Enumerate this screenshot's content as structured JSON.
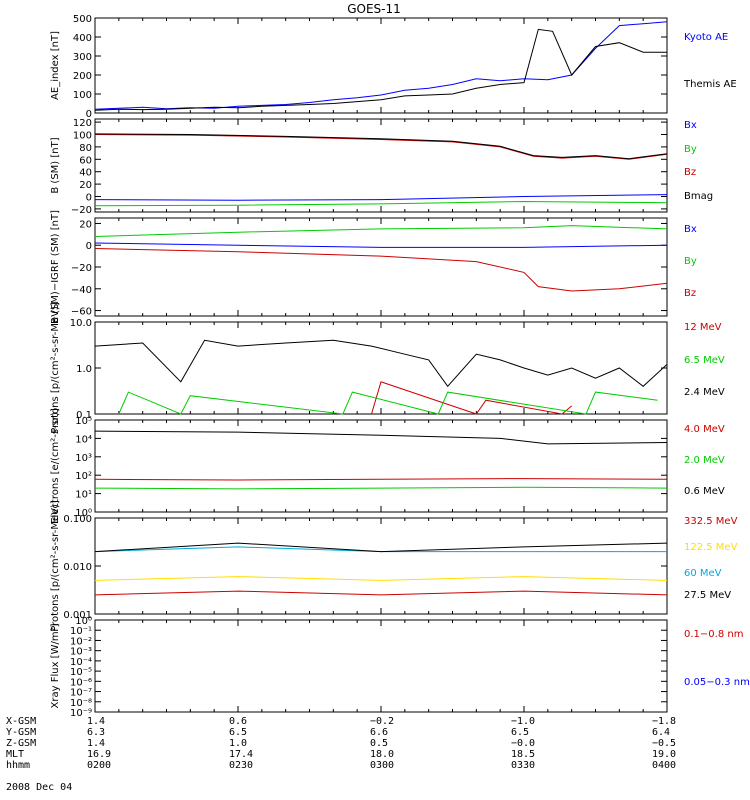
{
  "title": "GOES-11",
  "chart_data": [
    {
      "type": "line",
      "ylabel": "AE_index [nT]",
      "ylim": [
        0,
        500
      ],
      "yticks": [
        "500",
        "400",
        "300",
        "200",
        "100",
        "0"
      ],
      "ytick_values": [
        500,
        400,
        300,
        200,
        100,
        0
      ],
      "series": [
        {
          "name": "Kyoto AE",
          "color": "#0000ff",
          "x": [
            0,
            5,
            10,
            15,
            20,
            25,
            30,
            35,
            40,
            45,
            50,
            55,
            60,
            65,
            70,
            75,
            80,
            85,
            90,
            95,
            100,
            105,
            110,
            115,
            120
          ],
          "y": [
            20,
            25,
            30,
            22,
            28,
            25,
            35,
            40,
            45,
            55,
            70,
            80,
            95,
            120,
            130,
            150,
            180,
            170,
            180,
            175,
            200,
            340,
            460,
            470,
            480
          ]
        },
        {
          "name": "Themis AE",
          "color": "#000000",
          "x": [
            0,
            5,
            10,
            15,
            20,
            25,
            30,
            35,
            40,
            45,
            50,
            55,
            60,
            65,
            70,
            75,
            80,
            85,
            90,
            93,
            96,
            100,
            105,
            110,
            115,
            120
          ],
          "y": [
            15,
            20,
            18,
            20,
            25,
            30,
            28,
            35,
            40,
            45,
            50,
            60,
            70,
            90,
            95,
            100,
            130,
            150,
            160,
            440,
            430,
            200,
            350,
            370,
            320,
            320
          ]
        }
      ]
    },
    {
      "type": "line",
      "ylabel": "B (SM) [nT]",
      "ylim": [
        -25,
        125
      ],
      "yticks": [
        "120",
        "100",
        "80",
        "60",
        "40",
        "20",
        "0",
        "−20"
      ],
      "ytick_values": [
        120,
        100,
        80,
        60,
        40,
        20,
        0,
        -20
      ],
      "series": [
        {
          "name": "Bx",
          "color": "#0000ff",
          "x": [
            0,
            30,
            60,
            90,
            120
          ],
          "y": [
            -5,
            -6,
            -5,
            0,
            3
          ]
        },
        {
          "name": "By",
          "color": "#00cc00",
          "x": [
            0,
            30,
            60,
            90,
            120
          ],
          "y": [
            -15,
            -14,
            -12,
            -8,
            -10
          ]
        },
        {
          "name": "Bz",
          "color": "#cc0000",
          "x": [
            0,
            20,
            40,
            60,
            75,
            85,
            92,
            98,
            105,
            112,
            120
          ],
          "y": [
            100,
            99,
            96,
            92,
            88,
            80,
            65,
            62,
            65,
            60,
            68
          ]
        },
        {
          "name": "Bmag",
          "color": "#000000",
          "x": [
            0,
            20,
            40,
            60,
            75,
            85,
            92,
            98,
            105,
            112,
            120
          ],
          "y": [
            101,
            100,
            97,
            93,
            89,
            81,
            66,
            63,
            66,
            61,
            69
          ]
        }
      ]
    },
    {
      "type": "line",
      "ylabel": "B (SM)−IGRF (SM) [nT]",
      "ylim": [
        -65,
        25
      ],
      "yticks": [
        "20",
        "0",
        "−20",
        "−40",
        "−60"
      ],
      "ytick_values": [
        20,
        0,
        -20,
        -40,
        -60
      ],
      "series": [
        {
          "name": "Bx",
          "color": "#0000ff",
          "x": [
            0,
            30,
            60,
            90,
            120
          ],
          "y": [
            2,
            0,
            -2,
            -2,
            0
          ]
        },
        {
          "name": "By",
          "color": "#00cc00",
          "x": [
            0,
            30,
            60,
            90,
            100,
            120
          ],
          "y": [
            8,
            12,
            15,
            16,
            18,
            15
          ]
        },
        {
          "name": "Bz",
          "color": "#cc0000",
          "x": [
            0,
            30,
            60,
            80,
            90,
            93,
            100,
            110,
            120
          ],
          "y": [
            -3,
            -6,
            -10,
            -15,
            -25,
            -38,
            -42,
            -40,
            -35
          ]
        }
      ]
    },
    {
      "type": "line",
      "log": true,
      "ylabel": "Protons [p/(cm²-s-sr-MeV)]",
      "ylim": [
        0.1,
        10
      ],
      "yticks": [
        "10.0",
        "1.0",
        "0.1"
      ],
      "ytick_values": [
        10,
        1,
        0.1
      ],
      "series": [
        {
          "name": "12 MeV",
          "color": "#cc0000",
          "x": [
            58,
            60,
            80,
            82,
            98,
            100
          ],
          "y": [
            0.1,
            0.5,
            0.1,
            0.2,
            0.1,
            0.15
          ]
        },
        {
          "name": "6.5 MeV",
          "color": "#00cc00",
          "x": [
            5,
            7,
            18,
            20,
            52,
            54,
            72,
            74,
            103,
            105,
            118
          ],
          "y": [
            0.1,
            0.3,
            0.1,
            0.25,
            0.1,
            0.3,
            0.1,
            0.3,
            0.1,
            0.3,
            0.2
          ]
        },
        {
          "name": "2.4 MeV",
          "color": "#000000",
          "x": [
            0,
            10,
            18,
            23,
            30,
            40,
            50,
            58,
            65,
            70,
            74,
            80,
            85,
            90,
            95,
            100,
            105,
            110,
            115,
            120
          ],
          "y": [
            3,
            3.5,
            0.5,
            4,
            3,
            3.5,
            4,
            3,
            2,
            1.5,
            0.4,
            2,
            1.5,
            1,
            0.7,
            1,
            0.6,
            1,
            0.4,
            1.2
          ]
        }
      ]
    },
    {
      "type": "line",
      "log": true,
      "ylabel": "Electrons [e/(cm²-s-sr)]",
      "ylim": [
        1,
        100000
      ],
      "yticks": [
        "10⁵",
        "10⁴",
        "10³",
        "10²",
        "10¹",
        "10⁰"
      ],
      "ytick_values": [
        100000,
        10000,
        1000,
        100,
        10,
        1
      ],
      "series": [
        {
          "name": "4.0 MeV",
          "color": "#cc0000",
          "x": [
            0,
            30,
            60,
            90,
            120
          ],
          "y": [
            60,
            55,
            60,
            65,
            60
          ]
        },
        {
          "name": "2.0 MeV",
          "color": "#00cc00",
          "x": [
            0,
            30,
            60,
            90,
            120
          ],
          "y": [
            20,
            18,
            20,
            22,
            20
          ]
        },
        {
          "name": "0.6 MeV",
          "color": "#000000",
          "x": [
            0,
            30,
            60,
            85,
            95,
            120
          ],
          "y": [
            25000,
            22000,
            15000,
            10000,
            5000,
            6000
          ]
        }
      ]
    },
    {
      "type": "line",
      "log": true,
      "ylabel": "Protons [p/(cm²-s-sr-MeV)]",
      "ylim": [
        0.001,
        0.1
      ],
      "yticks": [
        "0.100",
        "0.010",
        "0.001"
      ],
      "ytick_values": [
        0.1,
        0.01,
        0.001
      ],
      "series": [
        {
          "name": "332.5 MeV",
          "color": "#cc0000",
          "x": [
            0,
            30,
            60,
            90,
            120
          ],
          "y": [
            0.0025,
            0.003,
            0.0025,
            0.003,
            0.0025
          ]
        },
        {
          "name": "122.5 MeV",
          "color": "#ffdd00",
          "x": [
            0,
            30,
            60,
            90,
            120
          ],
          "y": [
            0.005,
            0.006,
            0.005,
            0.006,
            0.005
          ]
        },
        {
          "name": "60 MeV",
          "color": "#00aadd",
          "x": [
            0,
            30,
            60,
            90,
            120
          ],
          "y": [
            0.02,
            0.025,
            0.02,
            0.02,
            0.02
          ]
        },
        {
          "name": "27.5 MeV",
          "color": "#000000",
          "x": [
            0,
            30,
            60,
            90,
            120
          ],
          "y": [
            0.02,
            0.03,
            0.02,
            0.025,
            0.03
          ]
        }
      ]
    },
    {
      "type": "line",
      "log": true,
      "ylabel": "Xray Flux [W/m²]",
      "ylim": [
        1e-09,
        1
      ],
      "yticks": [
        "10⁰",
        "10⁻¹",
        "10⁻²",
        "10⁻³",
        "10⁻⁴",
        "10⁻⁵",
        "10⁻⁶",
        "10⁻⁷",
        "10⁻⁸",
        "10⁻⁹"
      ],
      "ytick_values": [
        1,
        0.1,
        0.01,
        0.001,
        0.0001,
        1e-05,
        1e-06,
        1e-07,
        1e-08,
        1e-09
      ],
      "series": [
        {
          "name": "0.1−0.8 nm",
          "color": "#cc0000",
          "x": [],
          "y": []
        },
        {
          "name": "0.05−0.3 nm",
          "color": "#0000ff",
          "x": [],
          "y": []
        }
      ]
    }
  ],
  "ephemeris": {
    "labels": [
      "X-GSM",
      "Y-GSM",
      "Z-GSM",
      "MLT",
      "hhmm"
    ],
    "columns": [
      {
        "values": [
          "1.4",
          "6.3",
          "1.4",
          "16.9",
          "0200"
        ]
      },
      {
        "values": [
          "0.6",
          "6.5",
          "1.0",
          "17.4",
          "0230"
        ]
      },
      {
        "values": [
          "−0.2",
          "6.6",
          "0.5",
          "18.0",
          "0300"
        ]
      },
      {
        "values": [
          "−1.0",
          "6.5",
          "−0.0",
          "18.5",
          "0330"
        ]
      },
      {
        "values": [
          "−1.8",
          "6.4",
          "−0.5",
          "19.0",
          "0400"
        ]
      }
    ],
    "date": "2008 Dec 04"
  }
}
